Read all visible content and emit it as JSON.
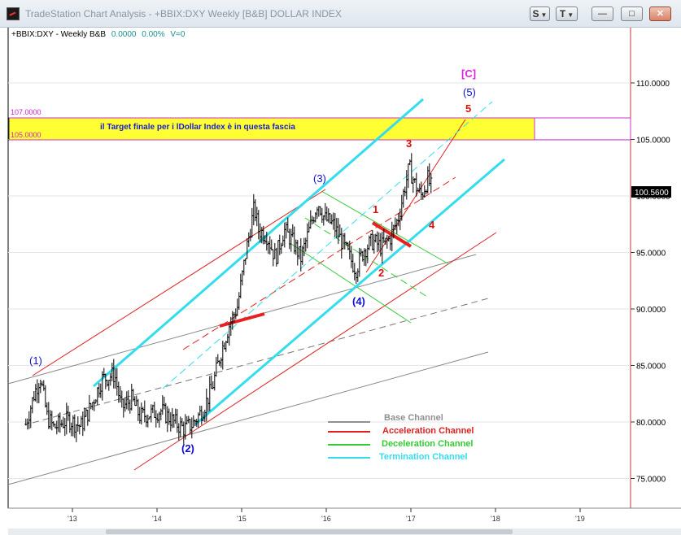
{
  "window": {
    "title": "TradeStation Chart Analysis - +BBIX:DXY Weekly [B&B] DOLLAR INDEX",
    "btn_s": "S",
    "btn_t": "T",
    "btn_min": "—",
    "btn_max": "□",
    "btn_close": "✕"
  },
  "chart_data": {
    "type": "ohlc-bar",
    "symbol_line": {
      "symbol": "+BBIX:DXY - Weekly  B&B",
      "change": "0.0000",
      "pct": "0.00%",
      "volume": "V=0"
    },
    "x_ticks": [
      "'13",
      "'14",
      "'15",
      "'16",
      "'17",
      "'18",
      "'19"
    ],
    "y_ticks": [
      "110.0000",
      "105.0000",
      "100.0000",
      "95.0000",
      "90.0000",
      "85.0000",
      "80.0000",
      "75.0000"
    ],
    "ylim": [
      72,
      114
    ],
    "last_price": "100.5600",
    "target_zone": {
      "high_label": "107.0000",
      "low_label": "105.0000",
      "text": "il Target finale per i lDollar Index è in questa fascia"
    },
    "annotations": {
      "w1": "(1)",
      "w2": "(2)",
      "w3": "(3)",
      "w4": "(4)",
      "w5": "(5)",
      "wc": "[C]",
      "s1": "1",
      "s2": "2",
      "s3": "3",
      "s4": "4",
      "s5": "5"
    },
    "legend": [
      {
        "label": "Base Channel",
        "color": "#909090"
      },
      {
        "label": "Acceleration Channel",
        "color": "#e02020"
      },
      {
        "label": "Deceleration Channel",
        "color": "#33cc33"
      },
      {
        "label": "Termination Channel",
        "color": "#33dded"
      }
    ],
    "price_path": [
      [
        2012.45,
        79.8
      ],
      [
        2012.55,
        82.5
      ],
      [
        2012.62,
        84.0
      ],
      [
        2012.7,
        80.5
      ],
      [
        2012.78,
        79.5
      ],
      [
        2012.95,
        80.2
      ],
      [
        2013.1,
        79.6
      ],
      [
        2013.22,
        81.4
      ],
      [
        2013.35,
        83.8
      ],
      [
        2013.5,
        84.2
      ],
      [
        2013.58,
        81.2
      ],
      [
        2013.7,
        82.0
      ],
      [
        2013.8,
        80.5
      ],
      [
        2013.95,
        80.8
      ],
      [
        2014.05,
        81.0
      ],
      [
        2014.2,
        80.0
      ],
      [
        2014.32,
        79.4
      ],
      [
        2014.42,
        79.8
      ],
      [
        2014.55,
        81.2
      ],
      [
        2014.65,
        83.0
      ],
      [
        2014.75,
        86.0
      ],
      [
        2014.85,
        88.5
      ],
      [
        2014.95,
        90.2
      ],
      [
        2015.05,
        95.0
      ],
      [
        2015.15,
        99.0
      ],
      [
        2015.2,
        97.0
      ],
      [
        2015.3,
        96.5
      ],
      [
        2015.4,
        94.5
      ],
      [
        2015.5,
        97.0
      ],
      [
        2015.6,
        96.0
      ],
      [
        2015.7,
        94.5
      ],
      [
        2015.8,
        97.0
      ],
      [
        2015.9,
        99.5
      ],
      [
        2015.98,
        98.0
      ],
      [
        2016.08,
        97.5
      ],
      [
        2016.18,
        96.0
      ],
      [
        2016.28,
        94.5
      ],
      [
        2016.35,
        93.5
      ],
      [
        2016.45,
        95.3
      ],
      [
        2016.55,
        96.0
      ],
      [
        2016.65,
        95.5
      ],
      [
        2016.75,
        96.2
      ],
      [
        2016.85,
        98.0
      ],
      [
        2016.92,
        100.5
      ],
      [
        2016.98,
        102.5
      ],
      [
        2017.05,
        101.0
      ],
      [
        2017.12,
        100.0
      ],
      [
        2017.2,
        101.5
      ],
      [
        2017.25,
        100.6
      ]
    ]
  }
}
